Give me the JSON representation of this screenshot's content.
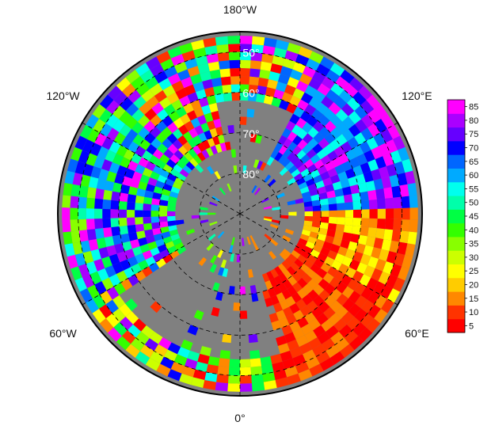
{
  "map": {
    "projection": "north-polar-stereographic",
    "background_color": "#808080",
    "longitude_labels": [
      {
        "text": "180°W",
        "lon": 180
      },
      {
        "text": "120°E",
        "lon": 120
      },
      {
        "text": "60°E",
        "lon": 60
      },
      {
        "text": "0°",
        "lon": 0
      },
      {
        "text": "60°W",
        "lon": -60
      },
      {
        "text": "120°W",
        "lon": -120
      }
    ],
    "latitude_labels": [
      {
        "text": "50°",
        "lat": 50
      },
      {
        "text": "60°",
        "lat": 60
      },
      {
        "text": "70°",
        "lat": 70
      },
      {
        "text": "80°",
        "lat": 80
      }
    ]
  },
  "colorbar": {
    "ticks": [
      5,
      10,
      15,
      20,
      25,
      30,
      35,
      40,
      45,
      50,
      55,
      60,
      65,
      70,
      75,
      80,
      85
    ],
    "colors": [
      "#ff0000",
      "#ff3300",
      "#ff8800",
      "#ffcc00",
      "#ffff00",
      "#ccff00",
      "#88ff00",
      "#33ff00",
      "#00ff44",
      "#00ffaa",
      "#00ffee",
      "#00aaff",
      "#0066ff",
      "#0000ff",
      "#6600ff",
      "#aa00ff",
      "#ff00ff"
    ]
  }
}
